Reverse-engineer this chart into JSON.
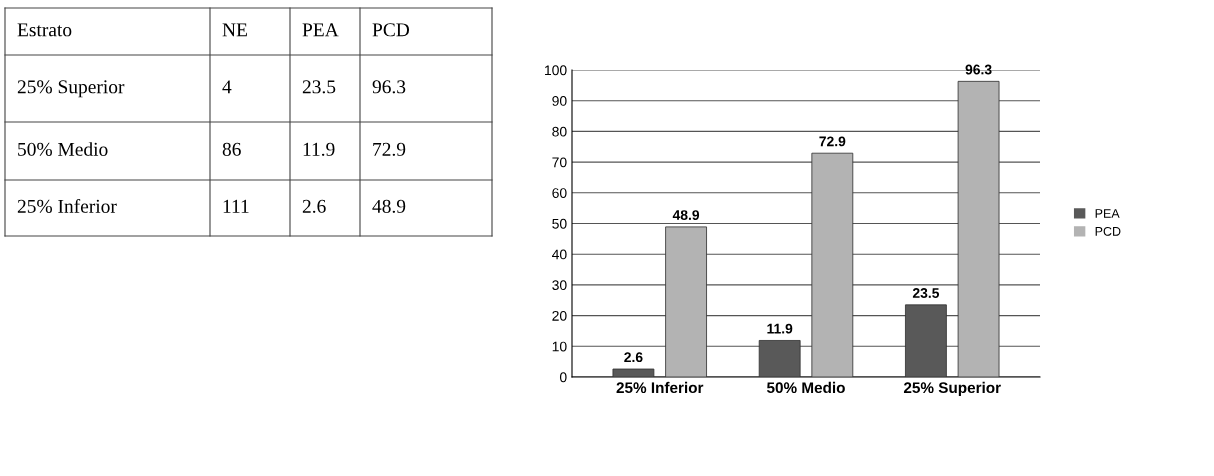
{
  "chart_data": [
    {
      "type": "other",
      "categories": [
        "Estrato",
        "NE",
        "PEA",
        "PCD"
      ],
      "annotations": [
        "25% Superior",
        "4",
        "23.5",
        "96.3",
        "50% Medio",
        "86",
        "11.9",
        "72.9",
        "25% Inferior",
        "111",
        "2.6",
        "48.9"
      ]
    },
    {
      "type": "bar",
      "categories": [
        "25% Inferior",
        "50% Medio",
        "25% Superior"
      ],
      "series": [
        {
          "name": "PEA",
          "color": "#595959",
          "values": [
            2.6,
            11.9,
            23.5
          ]
        },
        {
          "name": "PCD",
          "color": "#b3b3b3",
          "values": [
            48.9,
            72.9,
            96.3
          ]
        }
      ],
      "ylim": [
        0,
        100
      ],
      "yticks": [
        0,
        10,
        20,
        30,
        40,
        50,
        60,
        70,
        80,
        90,
        100
      ],
      "grid": "y",
      "legend": "right",
      "data_labels": true
    }
  ]
}
